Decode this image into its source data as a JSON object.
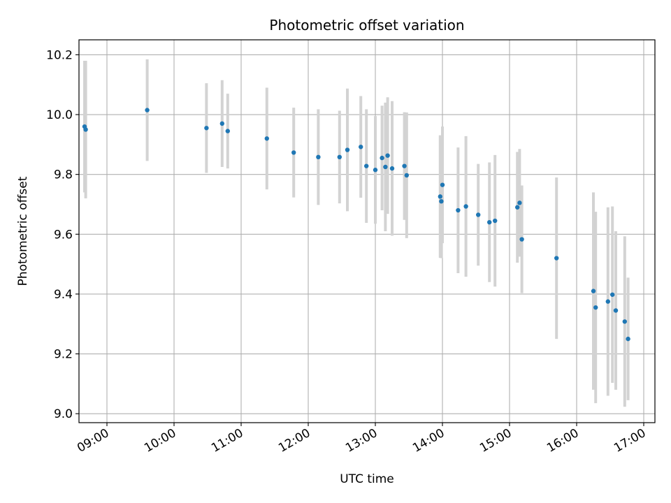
{
  "chart_data": {
    "type": "scatter",
    "title": "Photometric offset variation",
    "xlabel": "UTC time",
    "ylabel": "Photometric offset",
    "x_unit": "time of day (UTC)",
    "xlim": [
      "08:35",
      "17:10"
    ],
    "ylim": [
      8.97,
      10.25
    ],
    "x_ticks": [
      "09:00",
      "10:00",
      "11:00",
      "12:00",
      "13:00",
      "14:00",
      "15:00",
      "16:00",
      "17:00"
    ],
    "y_ticks": [
      "9.0",
      "9.2",
      "9.4",
      "9.6",
      "9.8",
      "10.0",
      "10.2"
    ],
    "grid": true,
    "colors": {
      "points": "#1f77b4",
      "errorbars": "#d3d3d3",
      "grid": "#b0b0b0"
    },
    "series": [
      {
        "points": [
          {
            "x": "08:40",
            "y": 9.96,
            "yerr": 0.22
          },
          {
            "x": "08:41",
            "y": 9.95,
            "yerr": 0.23
          },
          {
            "x": "09:36",
            "y": 10.015,
            "yerr": 0.17
          },
          {
            "x": "10:29",
            "y": 9.955,
            "yerr": 0.15
          },
          {
            "x": "10:43",
            "y": 9.97,
            "yerr": 0.145
          },
          {
            "x": "10:48",
            "y": 9.945,
            "yerr": 0.125
          },
          {
            "x": "11:23",
            "y": 9.92,
            "yerr": 0.17
          },
          {
            "x": "11:47",
            "y": 9.873,
            "yerr": 0.15
          },
          {
            "x": "12:09",
            "y": 9.858,
            "yerr": 0.16
          },
          {
            "x": "12:28",
            "y": 9.858,
            "yerr": 0.155
          },
          {
            "x": "12:35",
            "y": 9.882,
            "yerr": 0.205
          },
          {
            "x": "12:47",
            "y": 9.892,
            "yerr": 0.17
          },
          {
            "x": "12:52",
            "y": 9.828,
            "yerr": 0.19
          },
          {
            "x": "13:00",
            "y": 9.815,
            "yerr": 0.18
          },
          {
            "x": "13:06",
            "y": 9.855,
            "yerr": 0.175
          },
          {
            "x": "13:09",
            "y": 9.825,
            "yerr": 0.215
          },
          {
            "x": "13:11",
            "y": 9.863,
            "yerr": 0.195
          },
          {
            "x": "13:15",
            "y": 9.82,
            "yerr": 0.225
          },
          {
            "x": "13:26",
            "y": 9.828,
            "yerr": 0.18
          },
          {
            "x": "13:28",
            "y": 9.797,
            "yerr": 0.21
          },
          {
            "x": "13:58",
            "y": 9.726,
            "yerr": 0.205
          },
          {
            "x": "13:59",
            "y": 9.71,
            "yerr": 0.19
          },
          {
            "x": "14:00",
            "y": 9.765,
            "yerr": 0.195
          },
          {
            "x": "14:14",
            "y": 9.68,
            "yerr": 0.21
          },
          {
            "x": "14:21",
            "y": 9.693,
            "yerr": 0.235
          },
          {
            "x": "14:32",
            "y": 9.665,
            "yerr": 0.17
          },
          {
            "x": "14:42",
            "y": 9.64,
            "yerr": 0.2
          },
          {
            "x": "14:47",
            "y": 9.645,
            "yerr": 0.22
          },
          {
            "x": "15:07",
            "y": 9.69,
            "yerr": 0.185
          },
          {
            "x": "15:09",
            "y": 9.705,
            "yerr": 0.18
          },
          {
            "x": "15:11",
            "y": 9.583,
            "yerr": 0.18
          },
          {
            "x": "15:42",
            "y": 9.52,
            "yerr": 0.27
          },
          {
            "x": "16:15",
            "y": 9.41,
            "yerr": 0.33
          },
          {
            "x": "16:17",
            "y": 9.355,
            "yerr": 0.32
          },
          {
            "x": "16:28",
            "y": 9.375,
            "yerr": 0.315
          },
          {
            "x": "16:32",
            "y": 9.398,
            "yerr": 0.295
          },
          {
            "x": "16:35",
            "y": 9.345,
            "yerr": 0.265
          },
          {
            "x": "16:43",
            "y": 9.308,
            "yerr": 0.285
          },
          {
            "x": "16:46",
            "y": 9.25,
            "yerr": 0.205
          }
        ]
      }
    ]
  }
}
